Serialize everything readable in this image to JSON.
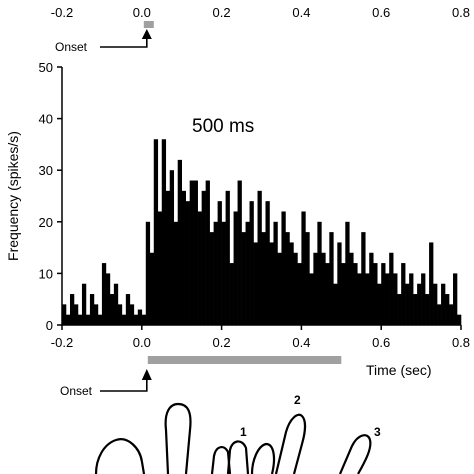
{
  "chart_data": {
    "type": "bar",
    "title": "",
    "xlabel": "Time (sec)",
    "ylabel": "Frequency (spikes/s)",
    "xlim": [
      -0.2,
      0.8
    ],
    "ylim": [
      0,
      50
    ],
    "xticks": [
      "-0.2",
      "0.0",
      "0.2",
      "0.4",
      "0.6",
      "0.8"
    ],
    "yticks": [
      "0",
      "10",
      "20",
      "30",
      "40",
      "50"
    ],
    "bin_width": 0.01,
    "x": [
      -0.2,
      -0.19,
      -0.18,
      -0.17,
      -0.16,
      -0.15,
      -0.14,
      -0.13,
      -0.12,
      -0.11,
      -0.1,
      -0.09,
      -0.08,
      -0.07,
      -0.06,
      -0.05,
      -0.04,
      -0.03,
      -0.02,
      -0.01,
      0.0,
      0.01,
      0.02,
      0.03,
      0.04,
      0.05,
      0.06,
      0.07,
      0.08,
      0.09,
      0.1,
      0.11,
      0.12,
      0.13,
      0.14,
      0.15,
      0.16,
      0.17,
      0.18,
      0.19,
      0.2,
      0.21,
      0.22,
      0.23,
      0.24,
      0.25,
      0.26,
      0.27,
      0.28,
      0.29,
      0.3,
      0.31,
      0.32,
      0.33,
      0.34,
      0.35,
      0.36,
      0.37,
      0.38,
      0.39,
      0.4,
      0.41,
      0.42,
      0.43,
      0.44,
      0.45,
      0.46,
      0.47,
      0.48,
      0.49,
      0.5,
      0.51,
      0.52,
      0.53,
      0.54,
      0.55,
      0.56,
      0.57,
      0.58,
      0.59,
      0.6,
      0.61,
      0.62,
      0.63,
      0.64,
      0.65,
      0.66,
      0.67,
      0.68,
      0.69,
      0.7,
      0.71,
      0.72,
      0.73,
      0.74,
      0.75,
      0.76,
      0.77,
      0.78,
      0.79
    ],
    "values": [
      4,
      2,
      6,
      4,
      2,
      8,
      2,
      6,
      4,
      2,
      12,
      10,
      6,
      8,
      4,
      2,
      6,
      4,
      2,
      3,
      2,
      20,
      14,
      36,
      22,
      36,
      26,
      30,
      20,
      32,
      26,
      24,
      28,
      28,
      22,
      26,
      28,
      18,
      20,
      24,
      20,
      26,
      12,
      22,
      28,
      18,
      20,
      24,
      16,
      26,
      18,
      24,
      16,
      20,
      14,
      22,
      18,
      16,
      14,
      12,
      22,
      18,
      10,
      14,
      20,
      14,
      12,
      18,
      8,
      16,
      12,
      20,
      14,
      12,
      10,
      18,
      10,
      14,
      12,
      8,
      12,
      10,
      14,
      10,
      6,
      12,
      8,
      10,
      6,
      8,
      10,
      6,
      16,
      8,
      4,
      8,
      6,
      4,
      10,
      2
    ],
    "annotations": {
      "duration_label": "500 ms",
      "onset_label": "Onset",
      "stimulus_start": 0.0,
      "stimulus_end": 0.5
    },
    "grid": false
  },
  "top_axis": {
    "ticks": [
      "-0.2",
      "0.0",
      "0.2",
      "0.4",
      "0.6",
      "0.8"
    ],
    "onset_label": "Onset"
  },
  "hand_labels": [
    "1",
    "2",
    "3"
  ],
  "colors": {
    "bars": "#000000",
    "stimulus_bar": "#a0a0a0",
    "background": "#ffffff"
  }
}
